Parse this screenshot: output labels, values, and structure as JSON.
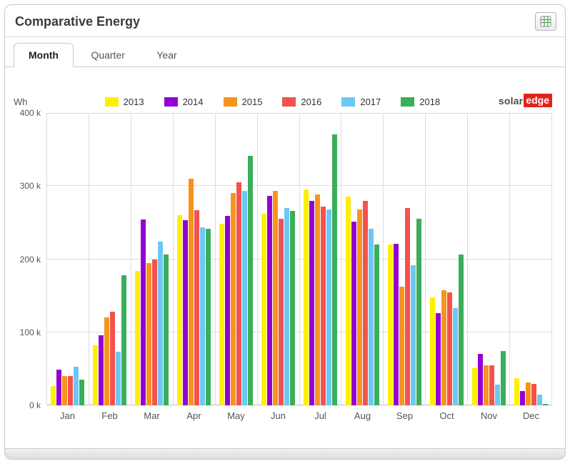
{
  "header": {
    "title": "Comparative Energy",
    "export_icon": "spreadsheet-export-icon"
  },
  "tabs": [
    {
      "label": "Month",
      "active": true
    },
    {
      "label": "Quarter",
      "active": false
    },
    {
      "label": "Year",
      "active": false
    }
  ],
  "logo": {
    "part1": "solar",
    "part2": "edge"
  },
  "chart_data": {
    "type": "bar",
    "title": "Comparative Energy",
    "xlabel": "",
    "ylabel": "Wh",
    "values_unit": "thousand Wh",
    "ylim": [
      0,
      400
    ],
    "y_ticks": [
      "0 k",
      "100 k",
      "200 k",
      "300 k",
      "400 k"
    ],
    "grid": true,
    "legend_position": "top-center",
    "categories": [
      "Jan",
      "Feb",
      "Mar",
      "Apr",
      "May",
      "Jun",
      "Jul",
      "Aug",
      "Sep",
      "Oct",
      "Nov",
      "Dec"
    ],
    "series": [
      {
        "name": "2013",
        "color": "#FDF000",
        "values": [
          26,
          82,
          184,
          260,
          248,
          262,
          295,
          286,
          220,
          148,
          51,
          37
        ]
      },
      {
        "name": "2014",
        "color": "#9400D3",
        "values": [
          49,
          96,
          254,
          253,
          259,
          287,
          280,
          251,
          221,
          126,
          70,
          20
        ]
      },
      {
        "name": "2015",
        "color": "#F7941D",
        "values": [
          40,
          120,
          195,
          310,
          290,
          293,
          289,
          268,
          162,
          157,
          55,
          31
        ]
      },
      {
        "name": "2016",
        "color": "#F4524D",
        "values": [
          40,
          128,
          200,
          267,
          305,
          255,
          272,
          280,
          270,
          155,
          55,
          29
        ]
      },
      {
        "name": "2017",
        "color": "#6DC8F1",
        "values": [
          53,
          73,
          224,
          244,
          293,
          270,
          268,
          242,
          192,
          133,
          28,
          15
        ]
      },
      {
        "name": "2018",
        "color": "#3BAE5B",
        "values": [
          35,
          178,
          206,
          242,
          341,
          266,
          371,
          220,
          255,
          206,
          74,
          2
        ]
      }
    ]
  }
}
